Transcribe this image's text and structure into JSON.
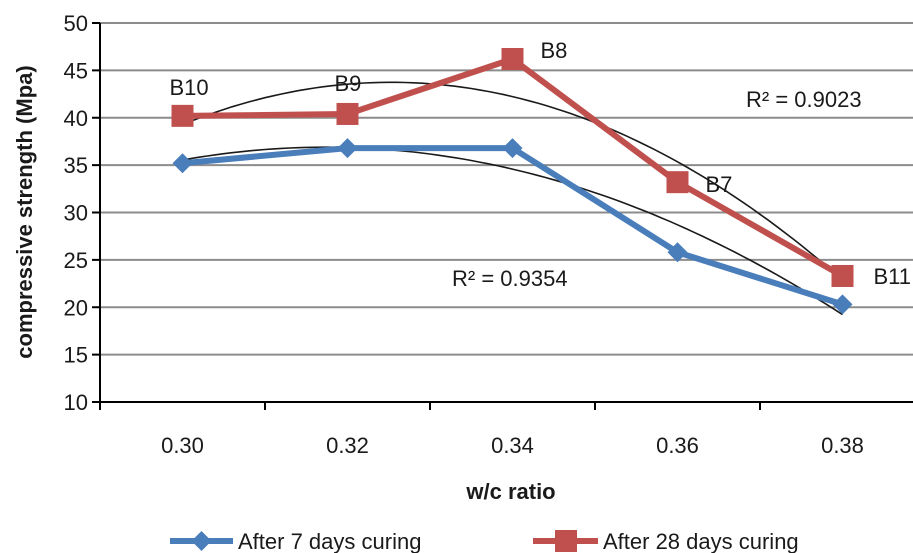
{
  "chart_data": {
    "type": "line",
    "xlabel": "w/c ratio",
    "ylabel": "compressive strength (Mpa)",
    "ylim": [
      10,
      50
    ],
    "y_ticks": [
      "10",
      "15",
      "20",
      "25",
      "30",
      "35",
      "40",
      "45",
      "50"
    ],
    "grid": "horizontal",
    "legend_position": "bottom",
    "categories": [
      "0.30",
      "0.32",
      "0.34",
      "0.36",
      "0.38"
    ],
    "series": [
      {
        "name": "After 7 days curing",
        "color": "#4a7ebb",
        "marker": "diamond",
        "values": [
          35.2,
          36.8,
          36.8,
          25.8,
          20.3
        ],
        "trendline": {
          "type": "polynomial-2",
          "r2_label": "R² = 0.9354",
          "color": "#1a1a1a"
        }
      },
      {
        "name": "After 28 days curing",
        "color": "#c0504d",
        "marker": "square",
        "values": [
          40.2,
          40.4,
          46.2,
          33.2,
          23.3
        ],
        "trendline": {
          "type": "polynomial-2",
          "r2_label": "R² = 0.9023",
          "color": "#1a1a1a"
        }
      }
    ],
    "point_labels": [
      "B10",
      "B9",
      "B8",
      "B7",
      "B11"
    ]
  }
}
